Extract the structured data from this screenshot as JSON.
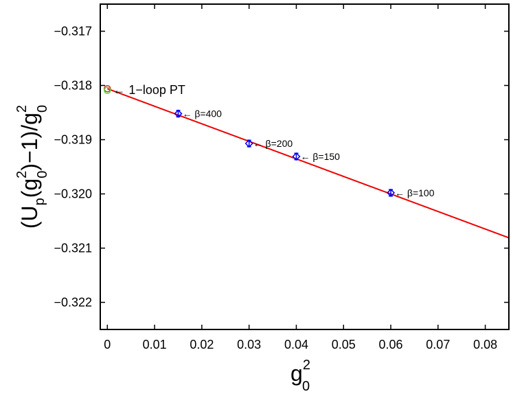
{
  "chart_data": {
    "type": "scatter",
    "title": "",
    "xlabel": {
      "base": "g",
      "sup": "2",
      "sub": "0"
    },
    "ylabel": {
      "parts": [
        "(U",
        "p",
        "(g",
        "2",
        "0",
        ")−1)/g",
        "2",
        "0"
      ]
    },
    "xlim": [
      -0.0015,
      0.085
    ],
    "ylim": [
      -0.3225,
      -0.3165
    ],
    "x_ticks": [
      0,
      0.01,
      0.02,
      0.03,
      0.04,
      0.05,
      0.06,
      0.07,
      0.08
    ],
    "x_tick_labels": [
      "0",
      "0.01",
      "0.02",
      "0.03",
      "0.04",
      "0.05",
      "0.06",
      "0.07",
      "0.08"
    ],
    "y_ticks": [
      -0.317,
      -0.318,
      -0.319,
      -0.32,
      -0.321,
      -0.322
    ],
    "y_tick_labels": [
      "−0.317",
      "−0.318",
      "−0.319",
      "−0.320",
      "−0.321",
      "−0.322"
    ],
    "series": [
      {
        "name": "data",
        "marker": "diamond",
        "color": "#0000ee",
        "points": [
          {
            "x": 0.015,
            "y": -0.31852,
            "err": 6e-05,
            "label": "← β=400"
          },
          {
            "x": 0.03,
            "y": -0.31907,
            "err": 6e-05,
            "label": "← β=200"
          },
          {
            "x": 0.04,
            "y": -0.31931,
            "err": 6e-05,
            "label": "← β=150"
          },
          {
            "x": 0.06,
            "y": -0.31998,
            "err": 6e-05,
            "label": "← β=100"
          }
        ]
      },
      {
        "name": "fit",
        "type": "line",
        "color": "#ee0000",
        "x": [
          0,
          0.085
        ],
        "y": [
          -0.31806,
          -0.32081
        ]
      },
      {
        "name": "1-loop PT",
        "marker": "circle",
        "points": [
          {
            "x": 0,
            "y": -0.31806,
            "color": "#ee2222"
          },
          {
            "x": 0,
            "y": -0.31809,
            "color": "#44dd44"
          }
        ]
      }
    ],
    "annotations": [
      {
        "text": "← 1−loop PT",
        "x": 0,
        "y": -0.31808
      }
    ]
  }
}
